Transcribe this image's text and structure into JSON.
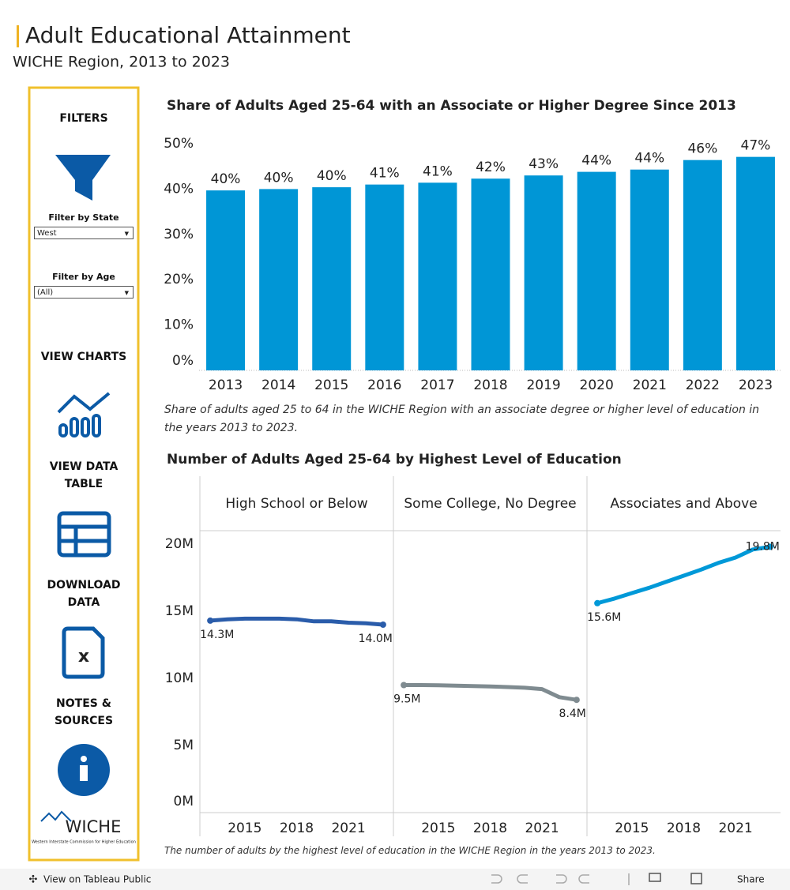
{
  "header": {
    "title": "Adult Educational Attainment",
    "subtitle": "WICHE Region, 2013 to 2023"
  },
  "sidebar": {
    "filters_heading": "FILTERS",
    "state_label": "Filter by State",
    "state_value": "West",
    "age_label": "Filter by Age",
    "age_value": "(All)",
    "view_charts": "VIEW CHARTS",
    "view_data_table": "VIEW DATA TABLE",
    "download_data": "DOWNLOAD DATA",
    "notes_sources": "NOTES & SOURCES",
    "logo": "WICHE",
    "logo_tagline": "Western Interstate Commission for Higher Education"
  },
  "toolbar": {
    "view_link": "View on Tableau Public",
    "share": "Share"
  },
  "chart_data": [
    {
      "type": "bar",
      "title": "Share of Adults Aged 25-64 with an Associate or Higher Degree Since 2013",
      "caption": "Share of adults aged 25 to 64 in the WICHE Region with an associate degree or higher level of education in the years 2013 to 2023.",
      "categories": [
        "2013",
        "2014",
        "2015",
        "2016",
        "2017",
        "2018",
        "2019",
        "2020",
        "2021",
        "2022",
        "2023"
      ],
      "values": [
        39.7,
        40.0,
        40.4,
        41.0,
        41.4,
        42.3,
        43.0,
        43.8,
        44.3,
        46.4,
        47.1
      ],
      "value_labels": [
        "40%",
        "40%",
        "40%",
        "41%",
        "41%",
        "42%",
        "43%",
        "44%",
        "44%",
        "46%",
        "47%"
      ],
      "color": "#0096d6",
      "ylim": [
        0,
        50
      ],
      "yticks": [
        {
          "value": 0,
          "label": "0%"
        },
        {
          "value": 10,
          "label": "10%"
        },
        {
          "value": 20,
          "label": "20%"
        },
        {
          "value": 30,
          "label": "30%"
        },
        {
          "value": 40,
          "label": "40%"
        },
        {
          "value": 50,
          "label": "50%"
        }
      ],
      "grid": false
    },
    {
      "type": "line",
      "title": "Number of Adults Aged 25-64 by Highest Level of Education",
      "caption": "The number of adults by the highest level of education in the WICHE Region in the years 2013 to 2023.",
      "x": [
        2013,
        2014,
        2015,
        2016,
        2017,
        2018,
        2019,
        2020,
        2021,
        2022,
        2023
      ],
      "xlim": [
        2012.4,
        2023.6
      ],
      "xticks": [
        2015,
        2018,
        2021
      ],
      "ylim": [
        0,
        21
      ],
      "yticks": [
        {
          "value": 0,
          "label": "0M"
        },
        {
          "value": 5,
          "label": "5M"
        },
        {
          "value": 10,
          "label": "10M"
        },
        {
          "value": 15,
          "label": "15M"
        },
        {
          "value": 20,
          "label": "20M"
        }
      ],
      "series": [
        {
          "name": "High School or Below",
          "color": "#2a5caa",
          "values": [
            14.3,
            14.4,
            14.45,
            14.45,
            14.45,
            14.4,
            14.25,
            14.25,
            14.15,
            14.1,
            14.0
          ],
          "value_labels": [
            "14.3M",
            null,
            null,
            null,
            null,
            null,
            null,
            null,
            null,
            null,
            "14.0M"
          ]
        },
        {
          "name": "Some College, No Degree",
          "color": "#7f8b90",
          "values": [
            9.5,
            9.5,
            9.48,
            9.46,
            9.43,
            9.4,
            9.35,
            9.3,
            9.2,
            8.6,
            8.4
          ],
          "value_labels": [
            "9.5M",
            null,
            null,
            null,
            null,
            null,
            null,
            null,
            null,
            null,
            "8.4M"
          ]
        },
        {
          "name": "Associates and Above",
          "color": "#0099d8",
          "values": [
            15.6,
            15.95,
            16.35,
            16.75,
            17.2,
            17.65,
            18.1,
            18.6,
            19.0,
            19.6,
            19.8
          ],
          "value_labels": [
            "15.6M",
            null,
            null,
            null,
            null,
            null,
            null,
            null,
            null,
            null,
            "19.8M"
          ]
        }
      ]
    }
  ]
}
